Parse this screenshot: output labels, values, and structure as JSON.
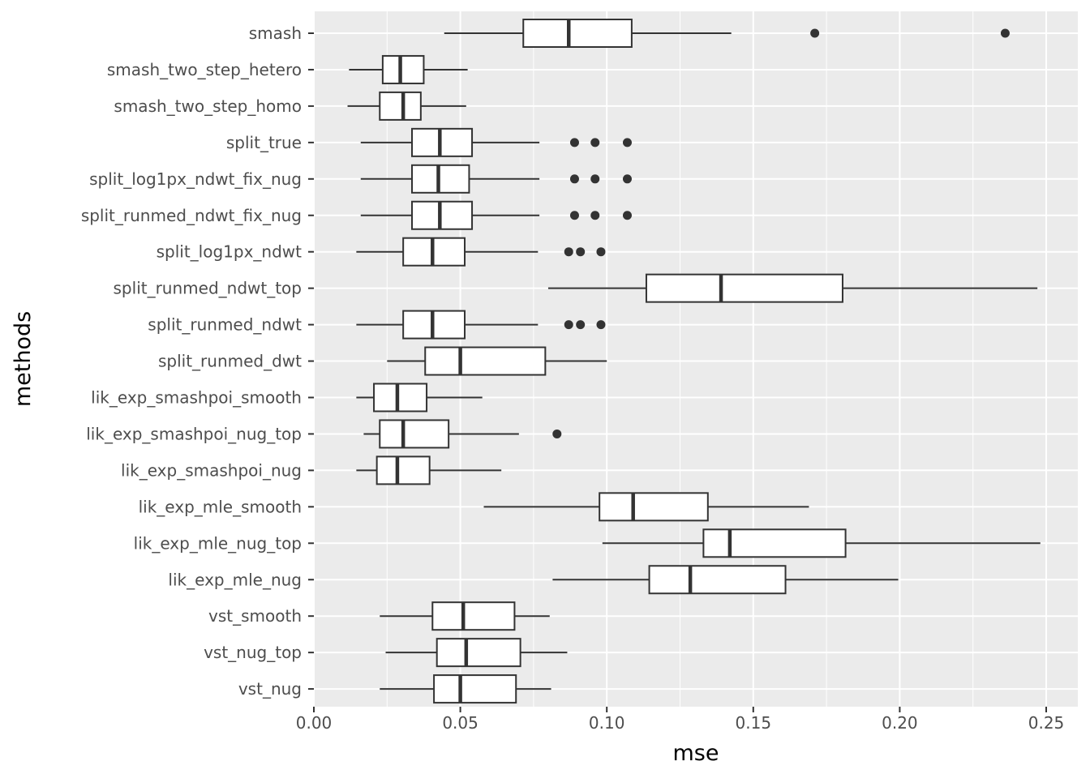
{
  "chart_data": {
    "type": "boxplot",
    "orientation": "horizontal",
    "xlabel": "mse",
    "ylabel": "methods",
    "xlim": [
      0.0,
      0.26
    ],
    "xticks": [
      0.0,
      0.05,
      0.1,
      0.15,
      0.2,
      0.25
    ],
    "xtick_labels": [
      "0.00",
      "0.05",
      "0.10",
      "0.15",
      "0.20",
      "0.25"
    ],
    "grid": true,
    "categories": [
      {
        "name": "smash",
        "whisker_low": 0.0445,
        "q1": 0.0715,
        "median": 0.087,
        "q3": 0.1085,
        "whisker_high": 0.1425,
        "outliers": [
          0.171,
          0.236
        ]
      },
      {
        "name": "smash_two_step_hetero",
        "whisker_low": 0.012,
        "q1": 0.0235,
        "median": 0.0295,
        "q3": 0.0375,
        "whisker_high": 0.0525,
        "outliers": []
      },
      {
        "name": "smash_two_step_homo",
        "whisker_low": 0.0115,
        "q1": 0.0225,
        "median": 0.0305,
        "q3": 0.0365,
        "whisker_high": 0.052,
        "outliers": []
      },
      {
        "name": "split_true",
        "whisker_low": 0.016,
        "q1": 0.0335,
        "median": 0.043,
        "q3": 0.054,
        "whisker_high": 0.077,
        "outliers": [
          0.089,
          0.096,
          0.107
        ]
      },
      {
        "name": "split_log1px_ndwt_fix_nug",
        "whisker_low": 0.016,
        "q1": 0.0335,
        "median": 0.0425,
        "q3": 0.053,
        "whisker_high": 0.077,
        "outliers": [
          0.089,
          0.096,
          0.107
        ]
      },
      {
        "name": "split_runmed_ndwt_fix_nug",
        "whisker_low": 0.016,
        "q1": 0.0335,
        "median": 0.043,
        "q3": 0.054,
        "whisker_high": 0.077,
        "outliers": [
          0.089,
          0.096,
          0.107
        ]
      },
      {
        "name": "split_log1px_ndwt",
        "whisker_low": 0.0145,
        "q1": 0.0305,
        "median": 0.0405,
        "q3": 0.0515,
        "whisker_high": 0.0765,
        "outliers": [
          0.087,
          0.091,
          0.098
        ]
      },
      {
        "name": "split_runmed_ndwt_top",
        "whisker_low": 0.08,
        "q1": 0.1135,
        "median": 0.139,
        "q3": 0.1805,
        "whisker_high": 0.247,
        "outliers": []
      },
      {
        "name": "split_runmed_ndwt",
        "whisker_low": 0.0145,
        "q1": 0.0305,
        "median": 0.0405,
        "q3": 0.0515,
        "whisker_high": 0.0765,
        "outliers": [
          0.087,
          0.091,
          0.098
        ]
      },
      {
        "name": "split_runmed_dwt",
        "whisker_low": 0.025,
        "q1": 0.038,
        "median": 0.05,
        "q3": 0.079,
        "whisker_high": 0.1,
        "outliers": []
      },
      {
        "name": "lik_exp_smashpoi_smooth",
        "whisker_low": 0.0145,
        "q1": 0.0205,
        "median": 0.0285,
        "q3": 0.0385,
        "whisker_high": 0.0575,
        "outliers": []
      },
      {
        "name": "lik_exp_smashpoi_nug_top",
        "whisker_low": 0.017,
        "q1": 0.0225,
        "median": 0.0305,
        "q3": 0.046,
        "whisker_high": 0.07,
        "outliers": [
          0.083
        ]
      },
      {
        "name": "lik_exp_smashpoi_nug",
        "whisker_low": 0.0145,
        "q1": 0.0215,
        "median": 0.0285,
        "q3": 0.0395,
        "whisker_high": 0.064,
        "outliers": []
      },
      {
        "name": "lik_exp_mle_smooth",
        "whisker_low": 0.058,
        "q1": 0.0975,
        "median": 0.109,
        "q3": 0.1345,
        "whisker_high": 0.169,
        "outliers": []
      },
      {
        "name": "lik_exp_mle_nug_top",
        "whisker_low": 0.0985,
        "q1": 0.133,
        "median": 0.142,
        "q3": 0.1815,
        "whisker_high": 0.248,
        "outliers": []
      },
      {
        "name": "lik_exp_mle_nug",
        "whisker_low": 0.0815,
        "q1": 0.1145,
        "median": 0.1285,
        "q3": 0.161,
        "whisker_high": 0.1995,
        "outliers": []
      },
      {
        "name": "vst_smooth",
        "whisker_low": 0.0225,
        "q1": 0.0405,
        "median": 0.051,
        "q3": 0.0685,
        "whisker_high": 0.0805,
        "outliers": []
      },
      {
        "name": "vst_nug_top",
        "whisker_low": 0.0245,
        "q1": 0.042,
        "median": 0.052,
        "q3": 0.0705,
        "whisker_high": 0.0865,
        "outliers": []
      },
      {
        "name": "vst_nug",
        "whisker_low": 0.0225,
        "q1": 0.041,
        "median": 0.05,
        "q3": 0.069,
        "whisker_high": 0.081,
        "outliers": []
      }
    ]
  },
  "colors": {
    "panel_background": "#ebebeb",
    "grid_major": "#ffffff",
    "box_stroke": "#333333",
    "box_fill": "#ffffff",
    "outlier": "#333333"
  }
}
